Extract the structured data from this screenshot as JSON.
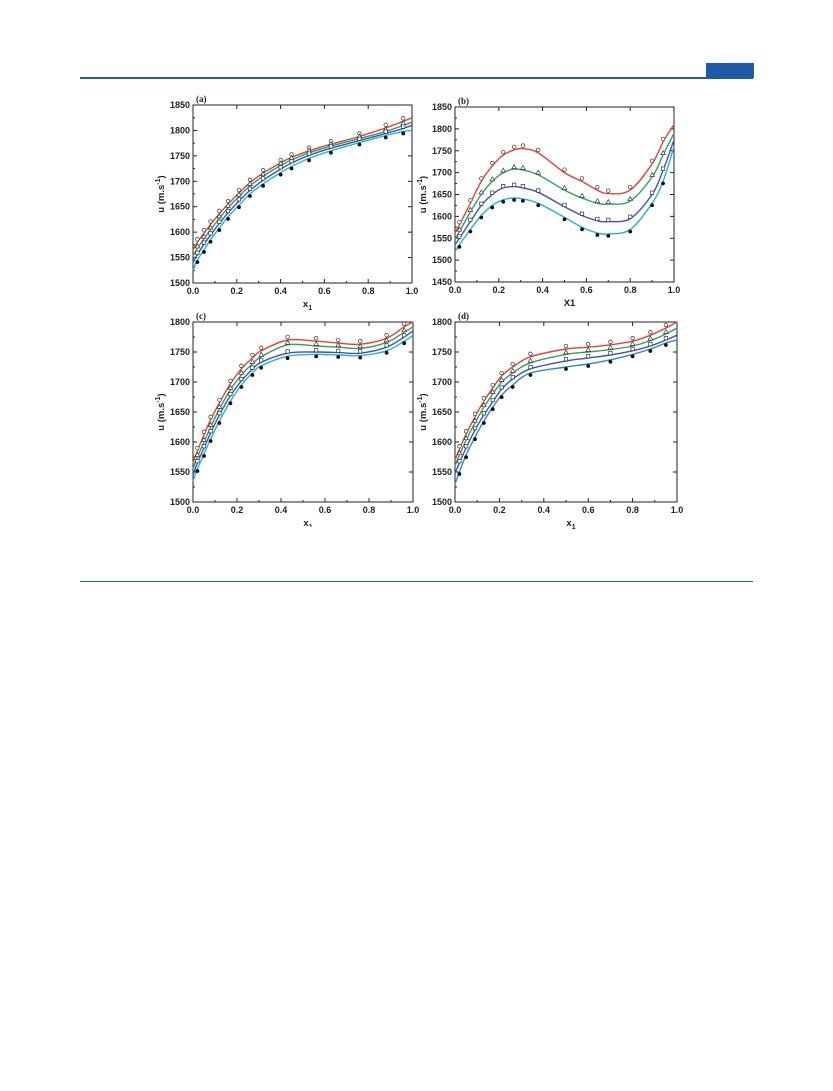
{
  "colors": {
    "rule": "#1f5aa6",
    "red": "#e8403a",
    "green": "#2aa55a",
    "blue": "#4a4ac8",
    "cyan": "#1fb8c8",
    "teal": "#2b8fb0"
  },
  "chart_data": [
    {
      "type": "line",
      "panel_label": "(a)",
      "xlabel": "x",
      "xlabel_sub": "1",
      "ylabel": "u (m.s",
      "ylabel_sup": "-1",
      "ylabel_end": ")",
      "xlim": [
        0,
        1
      ],
      "ylim": [
        1500,
        1850
      ],
      "xticks": [
        0.0,
        0.2,
        0.4,
        0.6,
        0.8,
        1.0
      ],
      "yticks": [
        1500,
        1550,
        1600,
        1650,
        1700,
        1750,
        1800,
        1850
      ],
      "xtick_labels": [
        "0.0",
        "0.2",
        "0.4",
        "0.6",
        "0.8",
        "1.0"
      ],
      "ytick_labels": [
        "1500",
        "1550",
        "1600",
        "1650",
        "1700",
        "1750",
        "1800",
        "1850"
      ],
      "x": [
        0.0,
        0.02,
        0.05,
        0.08,
        0.12,
        0.16,
        0.21,
        0.26,
        0.32,
        0.4,
        0.45,
        0.53,
        0.63,
        0.76,
        0.88,
        0.96,
        1.0
      ],
      "series": [
        {
          "color": "#e8403a",
          "marker": "circle-open",
          "values": [
            1565,
            1580,
            1598,
            1615,
            1636,
            1655,
            1677,
            1697,
            1716,
            1736,
            1747,
            1760,
            1773,
            1788,
            1805,
            1818,
            1825
          ]
        },
        {
          "color": "#2aa55a",
          "marker": "triangle-open",
          "values": [
            1553,
            1568,
            1587,
            1605,
            1627,
            1648,
            1670,
            1691,
            1710,
            1731,
            1742,
            1756,
            1769,
            1784,
            1798,
            1810,
            1816
          ]
        },
        {
          "color": "#4a4ac8",
          "marker": "square-open",
          "values": [
            1540,
            1556,
            1576,
            1594,
            1617,
            1638,
            1661,
            1682,
            1702,
            1724,
            1736,
            1751,
            1765,
            1780,
            1794,
            1804,
            1810
          ]
        },
        {
          "color": "#1fb8c8",
          "marker": "circle-filled",
          "values": [
            1525,
            1545,
            1565,
            1585,
            1608,
            1630,
            1653,
            1675,
            1695,
            1717,
            1729,
            1745,
            1760,
            1776,
            1790,
            1798,
            1800
          ]
        }
      ]
    },
    {
      "type": "line",
      "panel_label": "(b)",
      "xlabel": "X1",
      "xlabel_sub": "",
      "ylabel": "u (m.s",
      "ylabel_sup": "-1",
      "ylabel_end": ")",
      "xlim": [
        0,
        1
      ],
      "ylim": [
        1450,
        1850
      ],
      "xticks": [
        0.0,
        0.2,
        0.4,
        0.6,
        0.8,
        1.0
      ],
      "yticks": [
        1450,
        1500,
        1550,
        1600,
        1650,
        1700,
        1750,
        1800,
        1850
      ],
      "xtick_labels": [
        "0.0",
        "0.2",
        "0.4",
        "0.6",
        "0.8",
        "1.0"
      ],
      "ytick_labels": [
        "1450",
        "1500",
        "1550",
        "1600",
        "1650",
        "1700",
        "1750",
        "1800",
        "1850"
      ],
      "x": [
        0.0,
        0.02,
        0.07,
        0.12,
        0.17,
        0.22,
        0.27,
        0.31,
        0.38,
        0.5,
        0.58,
        0.65,
        0.7,
        0.8,
        0.9,
        0.95,
        1.0
      ],
      "series": [
        {
          "color": "#e8403a",
          "marker": "circle-open",
          "values": [
            1562,
            1580,
            1630,
            1680,
            1715,
            1740,
            1752,
            1755,
            1745,
            1700,
            1680,
            1660,
            1652,
            1660,
            1720,
            1770,
            1810
          ]
        },
        {
          "color": "#2aa55a",
          "marker": "triangle-open",
          "values": [
            1548,
            1565,
            1610,
            1650,
            1680,
            1700,
            1708,
            1706,
            1695,
            1660,
            1642,
            1630,
            1628,
            1635,
            1690,
            1740,
            1790
          ]
        },
        {
          "color": "#4a4ac8",
          "marker": "square-open",
          "values": [
            1535,
            1550,
            1588,
            1625,
            1650,
            1665,
            1668,
            1665,
            1655,
            1622,
            1602,
            1590,
            1588,
            1595,
            1650,
            1705,
            1775
          ]
        },
        {
          "color": "#1fb8c8",
          "marker": "circle-filled",
          "values": [
            1520,
            1535,
            1570,
            1602,
            1625,
            1638,
            1642,
            1640,
            1630,
            1598,
            1575,
            1562,
            1560,
            1570,
            1630,
            1680,
            1760
          ]
        }
      ]
    },
    {
      "type": "line",
      "panel_label": "(c)",
      "xlabel": "x",
      "xlabel_sub": "1",
      "ylabel": "u (m.s",
      "ylabel_sup": "-1",
      "ylabel_end": ")",
      "xlim": [
        0,
        1
      ],
      "ylim": [
        1500,
        1800
      ],
      "xticks": [
        0.0,
        0.2,
        0.4,
        0.6,
        0.8,
        1.0
      ],
      "yticks": [
        1500,
        1550,
        1600,
        1650,
        1700,
        1750,
        1800
      ],
      "xtick_labels": [
        "0.0",
        "0.2",
        "0.4",
        "0.6",
        "0.8",
        "1.0"
      ],
      "ytick_labels": [
        "1500",
        "1550",
        "1600",
        "1650",
        "1700",
        "1750",
        "1800"
      ],
      "x": [
        0.0,
        0.02,
        0.05,
        0.08,
        0.12,
        0.17,
        0.22,
        0.27,
        0.31,
        0.43,
        0.56,
        0.66,
        0.76,
        0.88,
        0.96,
        1.0
      ],
      "series": [
        {
          "color": "#e8403a",
          "marker": "circle-open",
          "values": [
            1565,
            1585,
            1612,
            1637,
            1665,
            1697,
            1722,
            1740,
            1752,
            1770,
            1768,
            1765,
            1763,
            1773,
            1792,
            1800
          ]
        },
        {
          "color": "#2aa55a",
          "marker": "triangle-open",
          "values": [
            1555,
            1575,
            1600,
            1625,
            1655,
            1687,
            1712,
            1730,
            1742,
            1762,
            1760,
            1758,
            1756,
            1766,
            1783,
            1792
          ]
        },
        {
          "color": "#4a4ac8",
          "marker": "square-open",
          "values": [
            1545,
            1565,
            1590,
            1615,
            1645,
            1677,
            1702,
            1721,
            1733,
            1748,
            1750,
            1749,
            1748,
            1758,
            1775,
            1785
          ]
        },
        {
          "color": "#1fb8c8",
          "marker": "circle-filled",
          "values": [
            1535,
            1555,
            1580,
            1605,
            1635,
            1668,
            1695,
            1715,
            1727,
            1743,
            1746,
            1745,
            1744,
            1752,
            1768,
            1778
          ]
        }
      ]
    },
    {
      "type": "line",
      "panel_label": "(d)",
      "xlabel": "x",
      "xlabel_sub": "1",
      "ylabel": "u (m.s",
      "ylabel_sup": "-1",
      "ylabel_end": ")",
      "xlim": [
        0,
        1
      ],
      "ylim": [
        1500,
        1800
      ],
      "xticks": [
        0.0,
        0.2,
        0.4,
        0.6,
        0.8,
        1.0
      ],
      "yticks": [
        1500,
        1550,
        1600,
        1650,
        1700,
        1750,
        1800
      ],
      "xtick_labels": [
        "0.0",
        "0.2",
        "0.4",
        "0.6",
        "0.8",
        "1.0"
      ],
      "ytick_labels": [
        "1500",
        "1550",
        "1600",
        "1650",
        "1700",
        "1750",
        "1800"
      ],
      "x": [
        0.0,
        0.02,
        0.05,
        0.09,
        0.13,
        0.17,
        0.21,
        0.26,
        0.34,
        0.5,
        0.6,
        0.7,
        0.8,
        0.88,
        0.95,
        1.0
      ],
      "series": [
        {
          "color": "#e8403a",
          "marker": "circle-open",
          "values": [
            1570,
            1588,
            1613,
            1642,
            1668,
            1690,
            1710,
            1725,
            1742,
            1755,
            1758,
            1762,
            1768,
            1778,
            1790,
            1800
          ]
        },
        {
          "color": "#2aa55a",
          "marker": "triangle-open",
          "values": [
            1560,
            1578,
            1603,
            1632,
            1658,
            1680,
            1700,
            1715,
            1732,
            1746,
            1750,
            1754,
            1760,
            1769,
            1780,
            1790
          ]
        },
        {
          "color": "#4a4ac8",
          "marker": "square-open",
          "values": [
            1548,
            1565,
            1590,
            1620,
            1645,
            1667,
            1688,
            1705,
            1722,
            1735,
            1740,
            1745,
            1752,
            1760,
            1770,
            1778
          ]
        },
        {
          "color": "#2b8fb0",
          "marker": "circle-filled",
          "values": [
            1530,
            1550,
            1578,
            1608,
            1635,
            1658,
            1678,
            1695,
            1715,
            1725,
            1730,
            1737,
            1746,
            1755,
            1765,
            1770
          ]
        }
      ]
    }
  ]
}
